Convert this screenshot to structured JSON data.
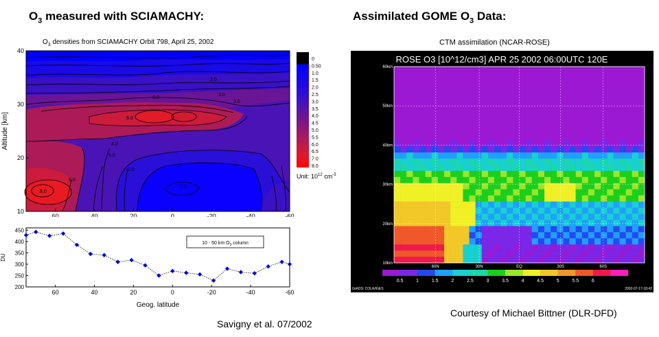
{
  "left": {
    "heading": {
      "pre": "O",
      "sub": "3",
      "post": " measured with SCIAMACHY:"
    },
    "contour_title": {
      "pre": "O",
      "sub": "3",
      "post": " densities from SCIAMACHY Orbit 798, April 25, 2002"
    },
    "colorbar": {
      "labels": [
        "0",
        "0.50",
        "1.0",
        "1.5",
        "2.0",
        "2.5",
        "3.0",
        "3.5",
        "4.0",
        "4.5",
        "5.0",
        "5.5",
        "6.0",
        "6.5",
        "7.0",
        "8.0"
      ],
      "unit": {
        "pre": "Unit: 10",
        "sup1": "12",
        "mid": " cm",
        "sup2": "-3"
      }
    },
    "citation": "Savigny et al. 07/2002"
  },
  "right": {
    "heading": {
      "pre": "Assimilated GOME O",
      "sub": "3",
      "post": " Data:"
    },
    "subtitle": "CTM assimilation (NCAR-ROSE)",
    "map_title": "ROSE O3 [10^12/cm3] APR 25 2002 06:00UTC 120E",
    "footer_left": "GrADS: COLA/IGES",
    "footer_right": "2002-07-17-10:42",
    "credit": "Courtesy of Michael Bittner (DLR-DFD)"
  },
  "chart_data": [
    {
      "type": "heatmap",
      "title": "O3 densities from SCIAMACHY Orbit 798, April 25, 2002",
      "xlabel": "",
      "ylabel": "Altitude [km]",
      "x_ticks": [
        "60",
        "40",
        "20",
        "0",
        "-20",
        "-40",
        "-60"
      ],
      "y_ticks": [
        "10",
        "20",
        "30",
        "40"
      ],
      "xlim": [
        75,
        -60
      ],
      "ylim": [
        10,
        40
      ],
      "contour_labels": [
        "8.0",
        "6.0",
        "6.0",
        "5.0",
        "4.0",
        "4.0",
        "3.0",
        "3.0",
        "2.0",
        "2.0",
        "1.0"
      ],
      "colors": [
        "#000000",
        "#0000ff",
        "#2a0fd8",
        "#4a13b6",
        "#6a1596",
        "#8a1878",
        "#ac1b58",
        "#cc1b3c",
        "#ff0000"
      ]
    },
    {
      "type": "scatter",
      "xlabel": "Geog. latitude",
      "ylabel": "DU",
      "legend": {
        "pre": "10 - 50 km O",
        "sub": "3",
        "post": " column"
      },
      "x_ticks": [
        "60",
        "40",
        "20",
        "0",
        "-20",
        "-40",
        "-60"
      ],
      "y_ticks": [
        "200",
        "250",
        "300",
        "350",
        "400",
        "450"
      ],
      "xlim": [
        75,
        -60
      ],
      "ylim": [
        200,
        460
      ],
      "x": [
        75,
        70,
        63,
        56,
        49,
        42,
        35,
        28,
        21,
        14,
        7,
        0,
        -7,
        -14,
        -21,
        -28,
        -35,
        -42,
        -49,
        -56,
        -60
      ],
      "y": [
        428,
        442,
        425,
        435,
        385,
        345,
        340,
        310,
        318,
        295,
        250,
        270,
        262,
        255,
        228,
        280,
        265,
        260,
        290,
        310,
        300
      ],
      "marker_color": "#0000dd"
    },
    {
      "type": "heatmap",
      "title": "ROSE O3 [10^12/cm3] APR 25 2002 06:00UTC 120E",
      "x_ticks": [
        "60N",
        "30N",
        "EQ",
        "30S",
        "60S"
      ],
      "y_ticks": [
        "10km",
        "20km",
        "30km",
        "40km",
        "50km",
        "60km"
      ],
      "colorbar_labels": [
        "0.5",
        "1",
        "1.5",
        "2",
        "2.5",
        "3",
        "3.5",
        "4",
        "4.5",
        "5",
        "5.5",
        "6"
      ],
      "colors": [
        "#9c19d4",
        "#7a27e8",
        "#2449f3",
        "#1fa0ff",
        "#19d0d0",
        "#1cd7a6",
        "#1ccf1c",
        "#9ae62a",
        "#f0f026",
        "#f2c829",
        "#f0962e",
        "#f0582a",
        "#f0194c",
        "#ff1dbe"
      ]
    }
  ]
}
